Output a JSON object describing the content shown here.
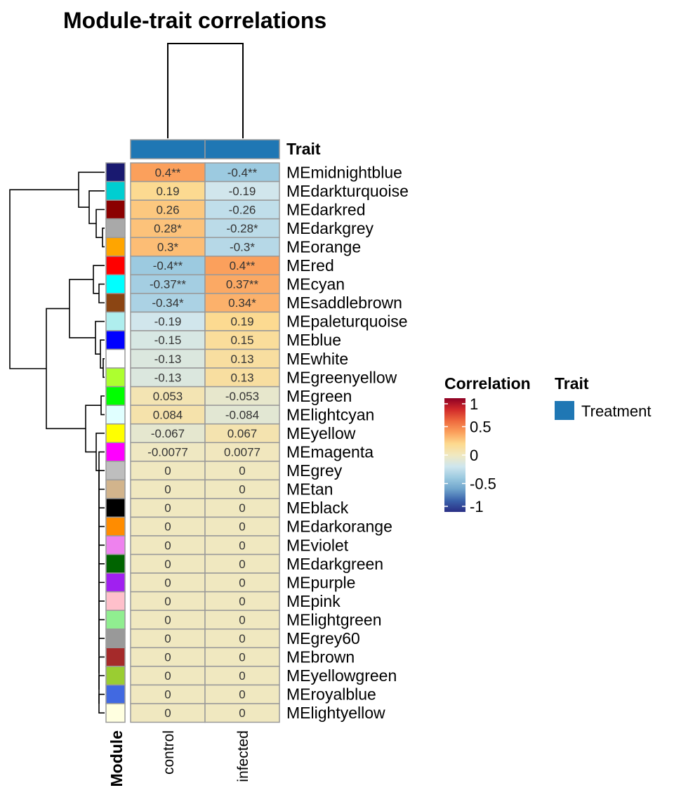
{
  "chart_data": {
    "type": "heatmap",
    "title": "Module-trait correlations",
    "columns": [
      "control",
      "infected"
    ],
    "column_annotation": {
      "name": "Trait",
      "value": "Treatment",
      "color": "#1F77B4"
    },
    "row_annotation_label": "Module",
    "rows": [
      {
        "name": "MEmidnightblue",
        "color": "#191970",
        "values": [
          0.4,
          -0.4
        ],
        "labels": [
          "0.4**",
          "-0.4**"
        ]
      },
      {
        "name": "MEdarkturquoise",
        "color": "#00CED1",
        "values": [
          0.19,
          -0.19
        ],
        "labels": [
          "0.19",
          "-0.19"
        ]
      },
      {
        "name": "MEdarkred",
        "color": "#8B0000",
        "values": [
          0.26,
          -0.26
        ],
        "labels": [
          "0.26",
          "-0.26"
        ]
      },
      {
        "name": "MEdarkgrey",
        "color": "#A9A9A9",
        "values": [
          0.28,
          -0.28
        ],
        "labels": [
          "0.28*",
          "-0.28*"
        ]
      },
      {
        "name": "MEorange",
        "color": "#FFA500",
        "values": [
          0.3,
          -0.3
        ],
        "labels": [
          "0.3*",
          "-0.3*"
        ]
      },
      {
        "name": "MEred",
        "color": "#FF0000",
        "values": [
          -0.4,
          0.4
        ],
        "labels": [
          "-0.4**",
          "0.4**"
        ]
      },
      {
        "name": "MEcyan",
        "color": "#00FFFF",
        "values": [
          -0.37,
          0.37
        ],
        "labels": [
          "-0.37**",
          "0.37**"
        ]
      },
      {
        "name": "MEsaddlebrown",
        "color": "#8B4513",
        "values": [
          -0.34,
          0.34
        ],
        "labels": [
          "-0.34*",
          "0.34*"
        ]
      },
      {
        "name": "MEpaleturquoise",
        "color": "#AFEEEE",
        "values": [
          -0.19,
          0.19
        ],
        "labels": [
          "-0.19",
          "0.19"
        ]
      },
      {
        "name": "MEblue",
        "color": "#0000FF",
        "values": [
          -0.15,
          0.15
        ],
        "labels": [
          "-0.15",
          "0.15"
        ]
      },
      {
        "name": "MEwhite",
        "color": "#FFFFFF",
        "values": [
          -0.13,
          0.13
        ],
        "labels": [
          "-0.13",
          "0.13"
        ]
      },
      {
        "name": "MEgreenyellow",
        "color": "#ADFF2F",
        "values": [
          -0.13,
          0.13
        ],
        "labels": [
          "-0.13",
          "0.13"
        ]
      },
      {
        "name": "MEgreen",
        "color": "#00FF00",
        "values": [
          0.053,
          -0.053
        ],
        "labels": [
          "0.053",
          "-0.053"
        ]
      },
      {
        "name": "MElightcyan",
        "color": "#E0FFFF",
        "values": [
          0.084,
          -0.084
        ],
        "labels": [
          "0.084",
          "-0.084"
        ]
      },
      {
        "name": "MEyellow",
        "color": "#FFFF00",
        "values": [
          -0.067,
          0.067
        ],
        "labels": [
          "-0.067",
          "0.067"
        ]
      },
      {
        "name": "MEmagenta",
        "color": "#FF00FF",
        "values": [
          -0.0077,
          0.0077
        ],
        "labels": [
          "-0.0077",
          "0.0077"
        ]
      },
      {
        "name": "MEgrey",
        "color": "#BEBEBE",
        "values": [
          0,
          0
        ],
        "labels": [
          "0",
          "0"
        ]
      },
      {
        "name": "MEtan",
        "color": "#D2B48C",
        "values": [
          0,
          0
        ],
        "labels": [
          "0",
          "0"
        ]
      },
      {
        "name": "MEblack",
        "color": "#000000",
        "values": [
          0,
          0
        ],
        "labels": [
          "0",
          "0"
        ]
      },
      {
        "name": "MEdarkorange",
        "color": "#FF8C00",
        "values": [
          0,
          0
        ],
        "labels": [
          "0",
          "0"
        ]
      },
      {
        "name": "MEviolet",
        "color": "#EE82EE",
        "values": [
          0,
          0
        ],
        "labels": [
          "0",
          "0"
        ]
      },
      {
        "name": "MEdarkgreen",
        "color": "#006400",
        "values": [
          0,
          0
        ],
        "labels": [
          "0",
          "0"
        ]
      },
      {
        "name": "MEpurple",
        "color": "#A020F0",
        "values": [
          0,
          0
        ],
        "labels": [
          "0",
          "0"
        ]
      },
      {
        "name": "MEpink",
        "color": "#FFC0CB",
        "values": [
          0,
          0
        ],
        "labels": [
          "0",
          "0"
        ]
      },
      {
        "name": "MElightgreen",
        "color": "#90EE90",
        "values": [
          0,
          0
        ],
        "labels": [
          "0",
          "0"
        ]
      },
      {
        "name": "MEgrey60",
        "color": "#999999",
        "values": [
          0,
          0
        ],
        "labels": [
          "0",
          "0"
        ]
      },
      {
        "name": "MEbrown",
        "color": "#A52A2A",
        "values": [
          0,
          0
        ],
        "labels": [
          "0",
          "0"
        ]
      },
      {
        "name": "MEyellowgreen",
        "color": "#9ACD32",
        "values": [
          0,
          0
        ],
        "labels": [
          "0",
          "0"
        ]
      },
      {
        "name": "MEroyalblue",
        "color": "#4169E1",
        "values": [
          0,
          0
        ],
        "labels": [
          "0",
          "0"
        ]
      },
      {
        "name": "MElightyellow",
        "color": "#FFFFE0",
        "values": [
          0,
          0
        ],
        "labels": [
          "0",
          "0"
        ]
      }
    ],
    "color_scale": {
      "title": "Correlation",
      "range": [
        -1,
        1
      ],
      "ticks": [
        "1",
        "0.5",
        "0",
        "-0.5",
        "-1"
      ],
      "tick_values": [
        1,
        0.5,
        0,
        -0.5,
        -1
      ],
      "stops": [
        {
          "value": -1,
          "color": "#2A2E85"
        },
        {
          "value": -0.8,
          "color": "#3A62AB"
        },
        {
          "value": -0.6,
          "color": "#6FA4CC"
        },
        {
          "value": -0.4,
          "color": "#9CCAE0"
        },
        {
          "value": -0.2,
          "color": "#CFE6EE"
        },
        {
          "value": 0,
          "color": "#F0E8C0"
        },
        {
          "value": 0.2,
          "color": "#FDD98E"
        },
        {
          "value": 0.4,
          "color": "#FBA05C"
        },
        {
          "value": 0.6,
          "color": "#EE6A3E"
        },
        {
          "value": 0.8,
          "color": "#D12A2A"
        },
        {
          "value": 1,
          "color": "#8E0024"
        }
      ]
    },
    "legend": {
      "title": "Trait",
      "items": [
        {
          "label": "Treatment",
          "color": "#1F77B4"
        }
      ]
    }
  }
}
